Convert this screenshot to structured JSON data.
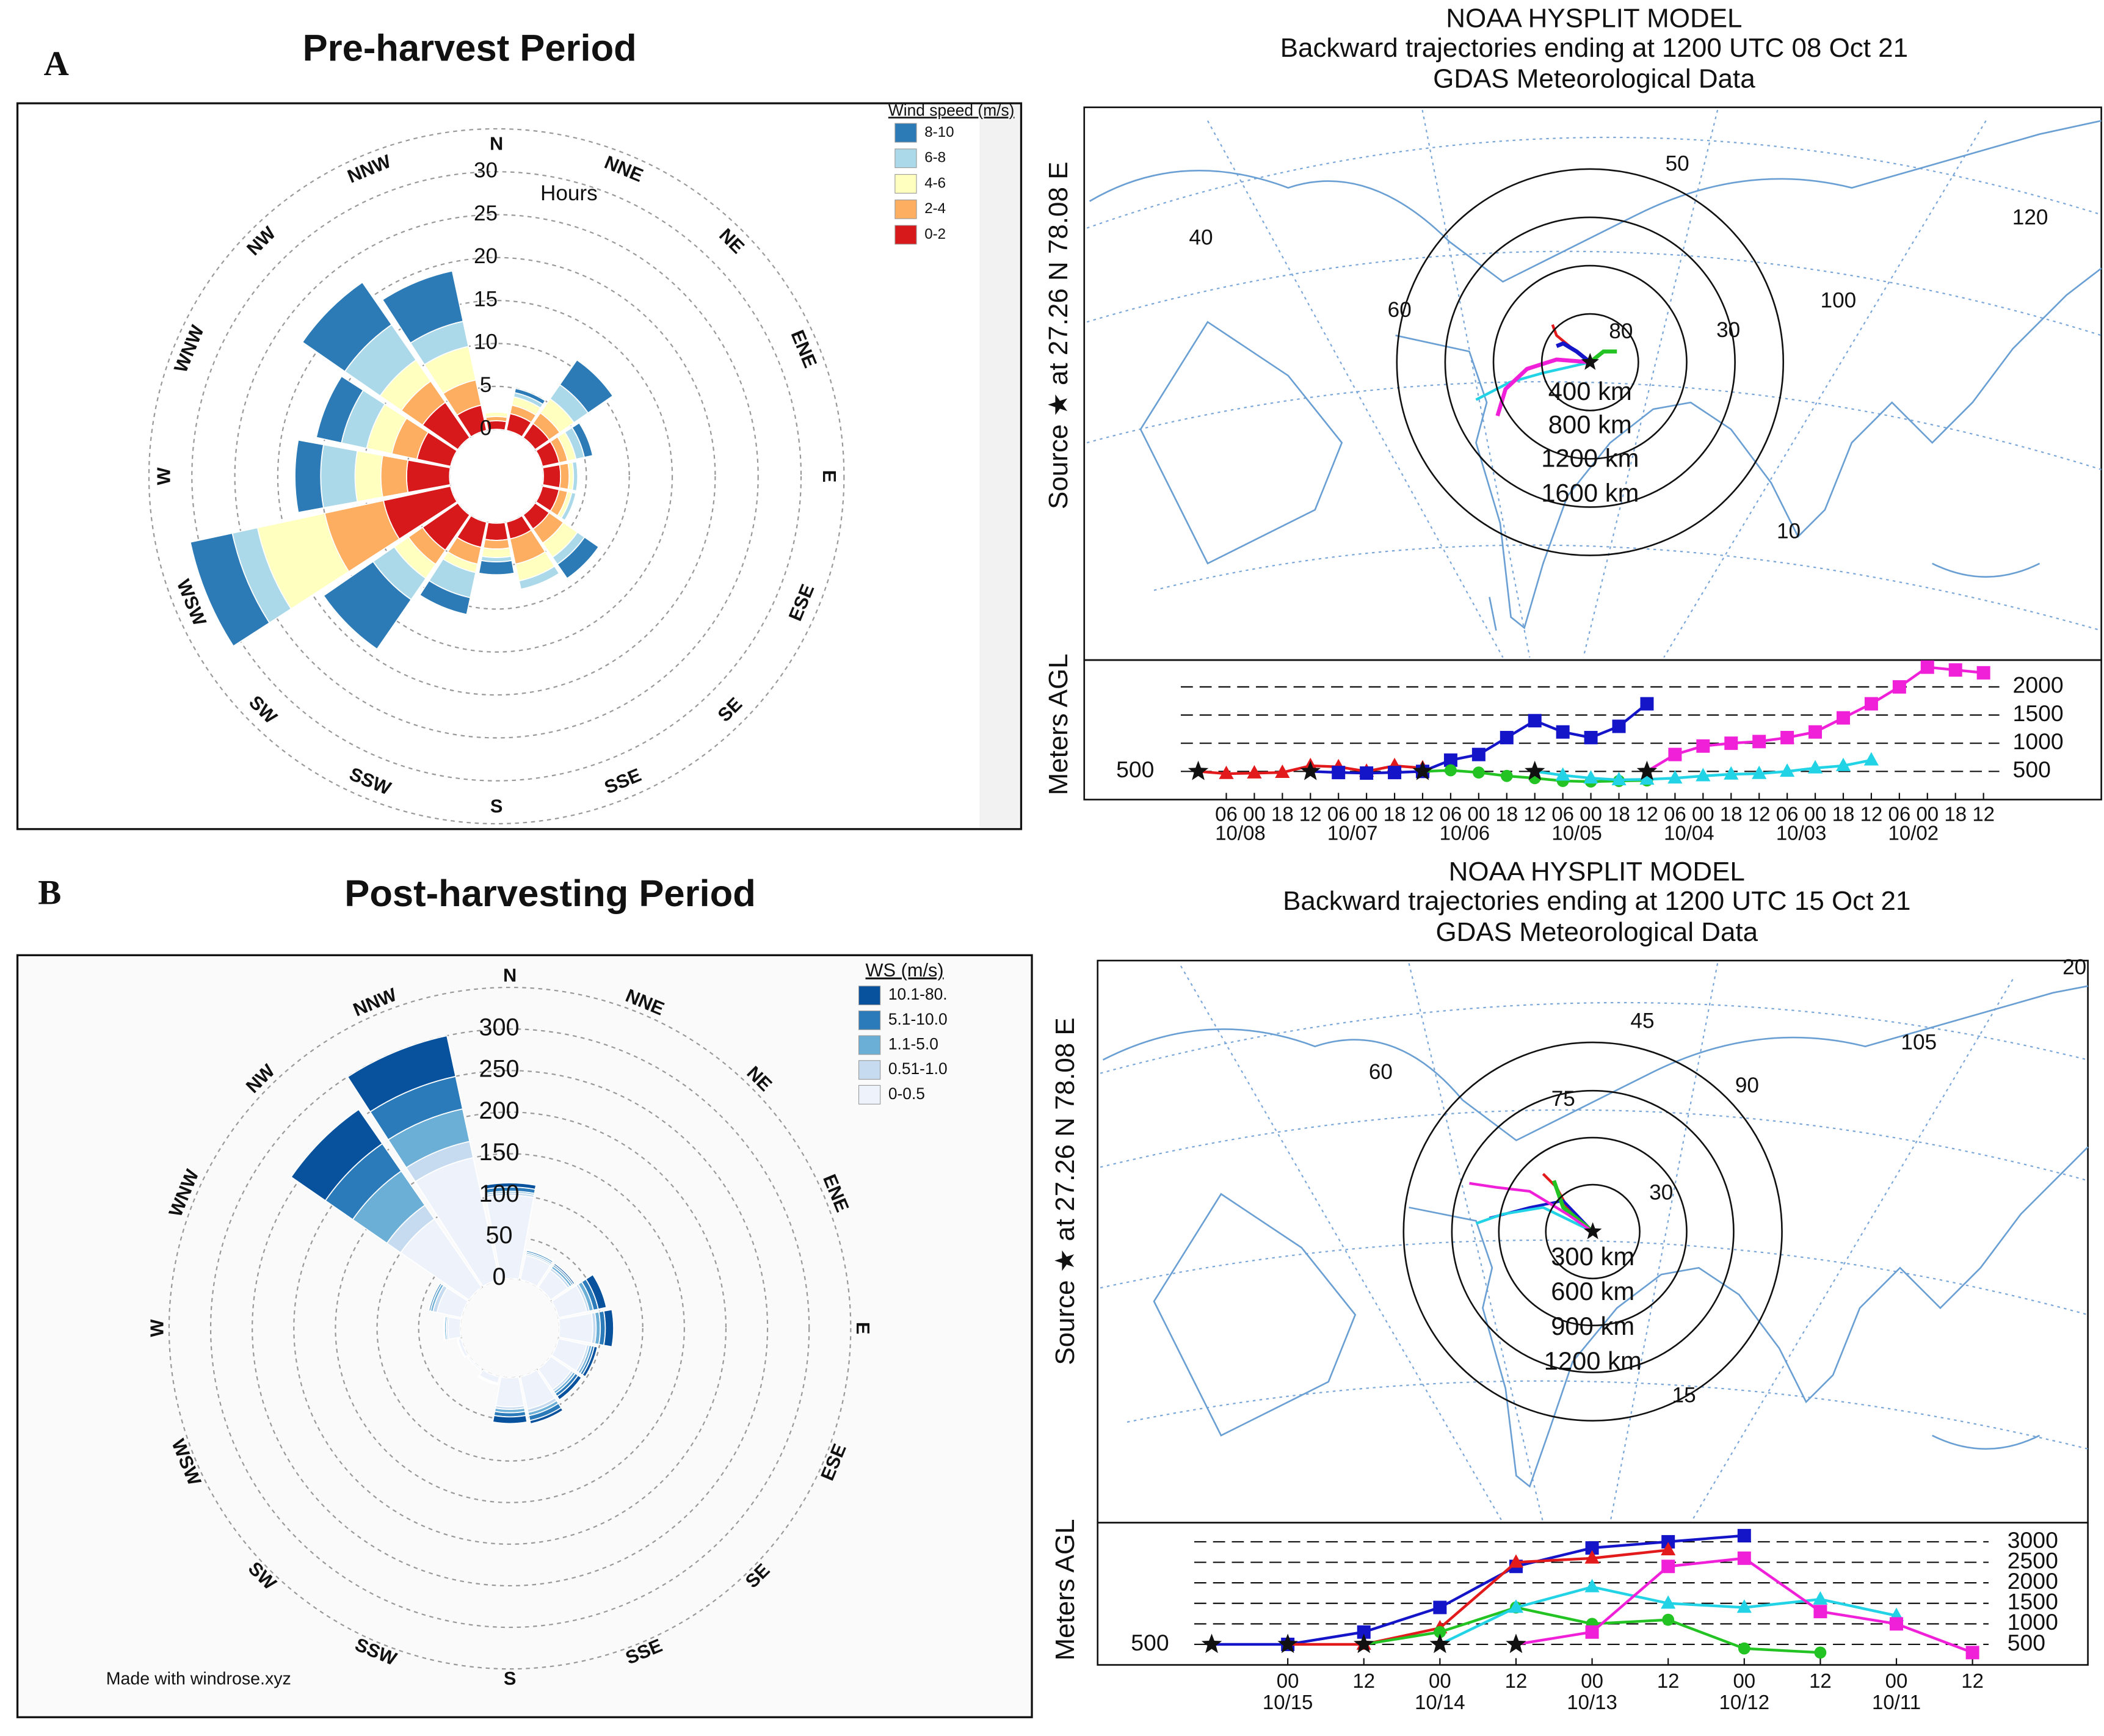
{
  "panel_labels": [
    "A",
    "B"
  ],
  "maps": [
    {
      "title": [
        "NOAA HYSPLIT MODEL",
        "Backward trajectories ending at 1200 UTC 08 Oct 21",
        "GDAS Meteorological Data"
      ],
      "source": "Source ★ at 27.26 N 78.08 E",
      "rings": [
        "400 km",
        "800 km",
        "1200 km",
        "1600 km"
      ],
      "grid_labels": [
        50,
        40,
        60,
        80,
        30,
        100,
        120,
        10
      ]
    },
    {
      "title": [
        "NOAA HYSPLIT MODEL",
        "Backward trajectories ending at 1200 UTC 15 Oct 21",
        "GDAS Meteorological Data"
      ],
      "source": "Source ★ at 27.26 N 78.08 E",
      "rings": [
        "300 km",
        "600 km",
        "900 km",
        "1200 km"
      ],
      "grid_labels": [
        20,
        45,
        60,
        105,
        90,
        75,
        30,
        15
      ]
    }
  ],
  "chart_data": [
    {
      "type": "windrose",
      "title": "Pre-harvest Period",
      "r_label": "Hours",
      "legend_title": "Wind speed (m/s)",
      "directions": [
        "N",
        "NNE",
        "NE",
        "ENE",
        "E",
        "ESE",
        "SE",
        "SSE",
        "S",
        "SSW",
        "SW",
        "WSW",
        "W",
        "WNW",
        "NW",
        "NNW"
      ],
      "rlim": [
        0,
        35
      ],
      "rticks": [
        0,
        5,
        10,
        15,
        20,
        25,
        30
      ],
      "series": [
        {
          "name": "0-2",
          "color": "#d7191c",
          "values": [
            1,
            2,
            2,
            2,
            2,
            2,
            2,
            2,
            2,
            3,
            5,
            8,
            5,
            4,
            5,
            3
          ]
        },
        {
          "name": "2-4",
          "color": "#fdae61",
          "values": [
            0.5,
            1,
            1.5,
            1,
            1,
            1,
            2,
            3,
            1,
            2,
            2,
            7,
            3,
            3,
            3,
            3
          ]
        },
        {
          "name": "4-6",
          "color": "#ffffbf",
          "values": [
            0.5,
            1,
            2,
            1,
            0.5,
            0.5,
            2,
            2,
            1,
            1,
            2,
            8,
            3,
            3,
            3,
            4
          ]
        },
        {
          "name": "6-8",
          "color": "#abd9e9",
          "values": [
            0,
            0.5,
            2,
            1,
            0.5,
            0.5,
            1,
            1,
            0.5,
            3,
            3,
            3,
            4,
            3,
            5,
            3
          ]
        },
        {
          "name": "8-10",
          "color": "#2c7bb6",
          "values": [
            0,
            0.5,
            3.5,
            1,
            0,
            0,
            2,
            0,
            1.5,
            2,
            7,
            5,
            3,
            3,
            6,
            6
          ]
        }
      ]
    },
    {
      "type": "line",
      "y_label": "Meters AGL",
      "start_height": 500,
      "categories": [
        null,
        "06",
        "00",
        "18",
        "12",
        "06",
        "00",
        "18",
        "12",
        "06",
        "00",
        "18",
        "12",
        "06",
        "00",
        "18",
        "12",
        "06",
        "00",
        "18",
        "12",
        "06",
        "00",
        "18",
        "12",
        "06",
        "00",
        "18",
        "12"
      ],
      "date_labels": [
        "10/08",
        "10/07",
        "10/06",
        "10/05",
        "10/04",
        "10/03",
        "10/02"
      ],
      "ylim": [
        0,
        2500
      ],
      "yticks": [
        500,
        1000,
        1500,
        2000
      ],
      "grid": true,
      "series": [
        {
          "color": "#e31a1c",
          "marker": "triangle",
          "values": [
            500,
            460,
            470,
            480,
            600,
            580,
            500,
            600,
            560,
            null,
            null,
            null,
            null,
            null,
            null,
            null,
            null,
            null,
            null,
            null,
            null,
            null,
            null,
            null,
            null,
            null,
            null,
            null,
            null
          ]
        },
        {
          "color": "#1414c8",
          "marker": "square",
          "values": [
            null,
            null,
            null,
            null,
            500,
            480,
            470,
            480,
            500,
            700,
            800,
            1100,
            1400,
            1200,
            1100,
            1300,
            1700,
            null,
            null,
            null,
            null,
            null,
            null,
            null,
            null,
            null,
            null,
            null,
            null
          ]
        },
        {
          "color": "#22c322",
          "marker": "circle",
          "values": [
            null,
            null,
            null,
            null,
            null,
            null,
            null,
            null,
            500,
            520,
            480,
            420,
            380,
            330,
            320,
            330,
            340,
            null,
            null,
            null,
            null,
            null,
            null,
            null,
            null,
            null,
            null,
            null,
            null
          ]
        },
        {
          "color": "#22d3e6",
          "marker": "triangle",
          "values": [
            null,
            null,
            null,
            null,
            null,
            null,
            null,
            null,
            null,
            null,
            null,
            null,
            500,
            430,
            380,
            350,
            360,
            380,
            420,
            450,
            460,
            500,
            560,
            600,
            700,
            null,
            null,
            null,
            null
          ]
        },
        {
          "color": "#f020d8",
          "marker": "square",
          "values": [
            null,
            null,
            null,
            null,
            null,
            null,
            null,
            null,
            null,
            null,
            null,
            null,
            null,
            null,
            null,
            null,
            500,
            800,
            950,
            1000,
            1030,
            1100,
            1200,
            1450,
            1700,
            2000,
            2350,
            2300,
            2250
          ]
        }
      ]
    },
    {
      "type": "windrose",
      "title": "Post-harvesting Period",
      "legend_title": "WS (m/s)",
      "credit": "Made with windrose.xyz",
      "directions": [
        "N",
        "NNE",
        "NE",
        "ENE",
        "E",
        "ESE",
        "SE",
        "SSE",
        "S",
        "SSW",
        "SW",
        "WSW",
        "W",
        "WNW",
        "NW",
        "NNW"
      ],
      "rlim": [
        0,
        350
      ],
      "rticks": [
        0,
        50,
        100,
        150,
        200,
        250,
        300
      ],
      "series": [
        {
          "name": "0-0.5",
          "color": "#eef3fb",
          "values": [
            100,
            30,
            25,
            35,
            40,
            35,
            30,
            40,
            35,
            8,
            2,
            4,
            15,
            30,
            100,
            150
          ]
        },
        {
          "name": "0.51-1.0",
          "color": "#c6dbef",
          "values": [
            3,
            2,
            3,
            3,
            4,
            3,
            3,
            4,
            3,
            1,
            0,
            0,
            2,
            5,
            20,
            20
          ]
        },
        {
          "name": "1.1-5.0",
          "color": "#6baed6",
          "values": [
            2,
            2,
            3,
            5,
            5,
            3,
            3,
            4,
            4,
            1,
            0,
            1,
            2,
            3,
            50,
            40
          ]
        },
        {
          "name": "5.1-10.0",
          "color": "#2b7bba",
          "values": [
            5,
            2,
            2,
            6,
            6,
            3,
            4,
            6,
            5,
            0,
            0,
            0,
            1,
            2,
            40,
            40
          ]
        },
        {
          "name": "10.1-80.",
          "color": "#08519c",
          "values": [
            5,
            1,
            2,
            10,
            10,
            4,
            5,
            4,
            8,
            0,
            0,
            0,
            0,
            0,
            50,
            50
          ]
        }
      ]
    },
    {
      "type": "line",
      "y_label": "Meters AGL",
      "start_height": 500,
      "categories": [
        null,
        "00",
        "12",
        "00",
        "12",
        "00",
        "12",
        "00",
        "12",
        "00",
        "12"
      ],
      "date_labels": [
        "10/15",
        "10/14",
        "10/13",
        "10/12",
        "10/11"
      ],
      "ylim": [
        0,
        3400
      ],
      "yticks": [
        500,
        1000,
        1500,
        2000,
        2500,
        3000
      ],
      "grid": true,
      "series": [
        {
          "color": "#1414c8",
          "marker": "square",
          "values": [
            500,
            500,
            800,
            1400,
            2400,
            2850,
            3000,
            3150,
            null,
            null,
            null
          ]
        },
        {
          "color": "#e31a1c",
          "marker": "triangle",
          "values": [
            null,
            500,
            500,
            900,
            2500,
            2600,
            2800,
            null,
            null,
            null,
            null
          ]
        },
        {
          "color": "#22c322",
          "marker": "circle",
          "values": [
            null,
            null,
            500,
            800,
            1400,
            1000,
            1100,
            400,
            300,
            null,
            null
          ]
        },
        {
          "color": "#22d3e6",
          "marker": "triangle",
          "values": [
            null,
            null,
            null,
            500,
            1400,
            1900,
            1500,
            1400,
            1600,
            1200,
            null
          ]
        },
        {
          "color": "#f020d8",
          "marker": "square",
          "values": [
            null,
            null,
            null,
            null,
            500,
            800,
            2400,
            2600,
            1300,
            1000,
            300
          ]
        }
      ]
    }
  ]
}
